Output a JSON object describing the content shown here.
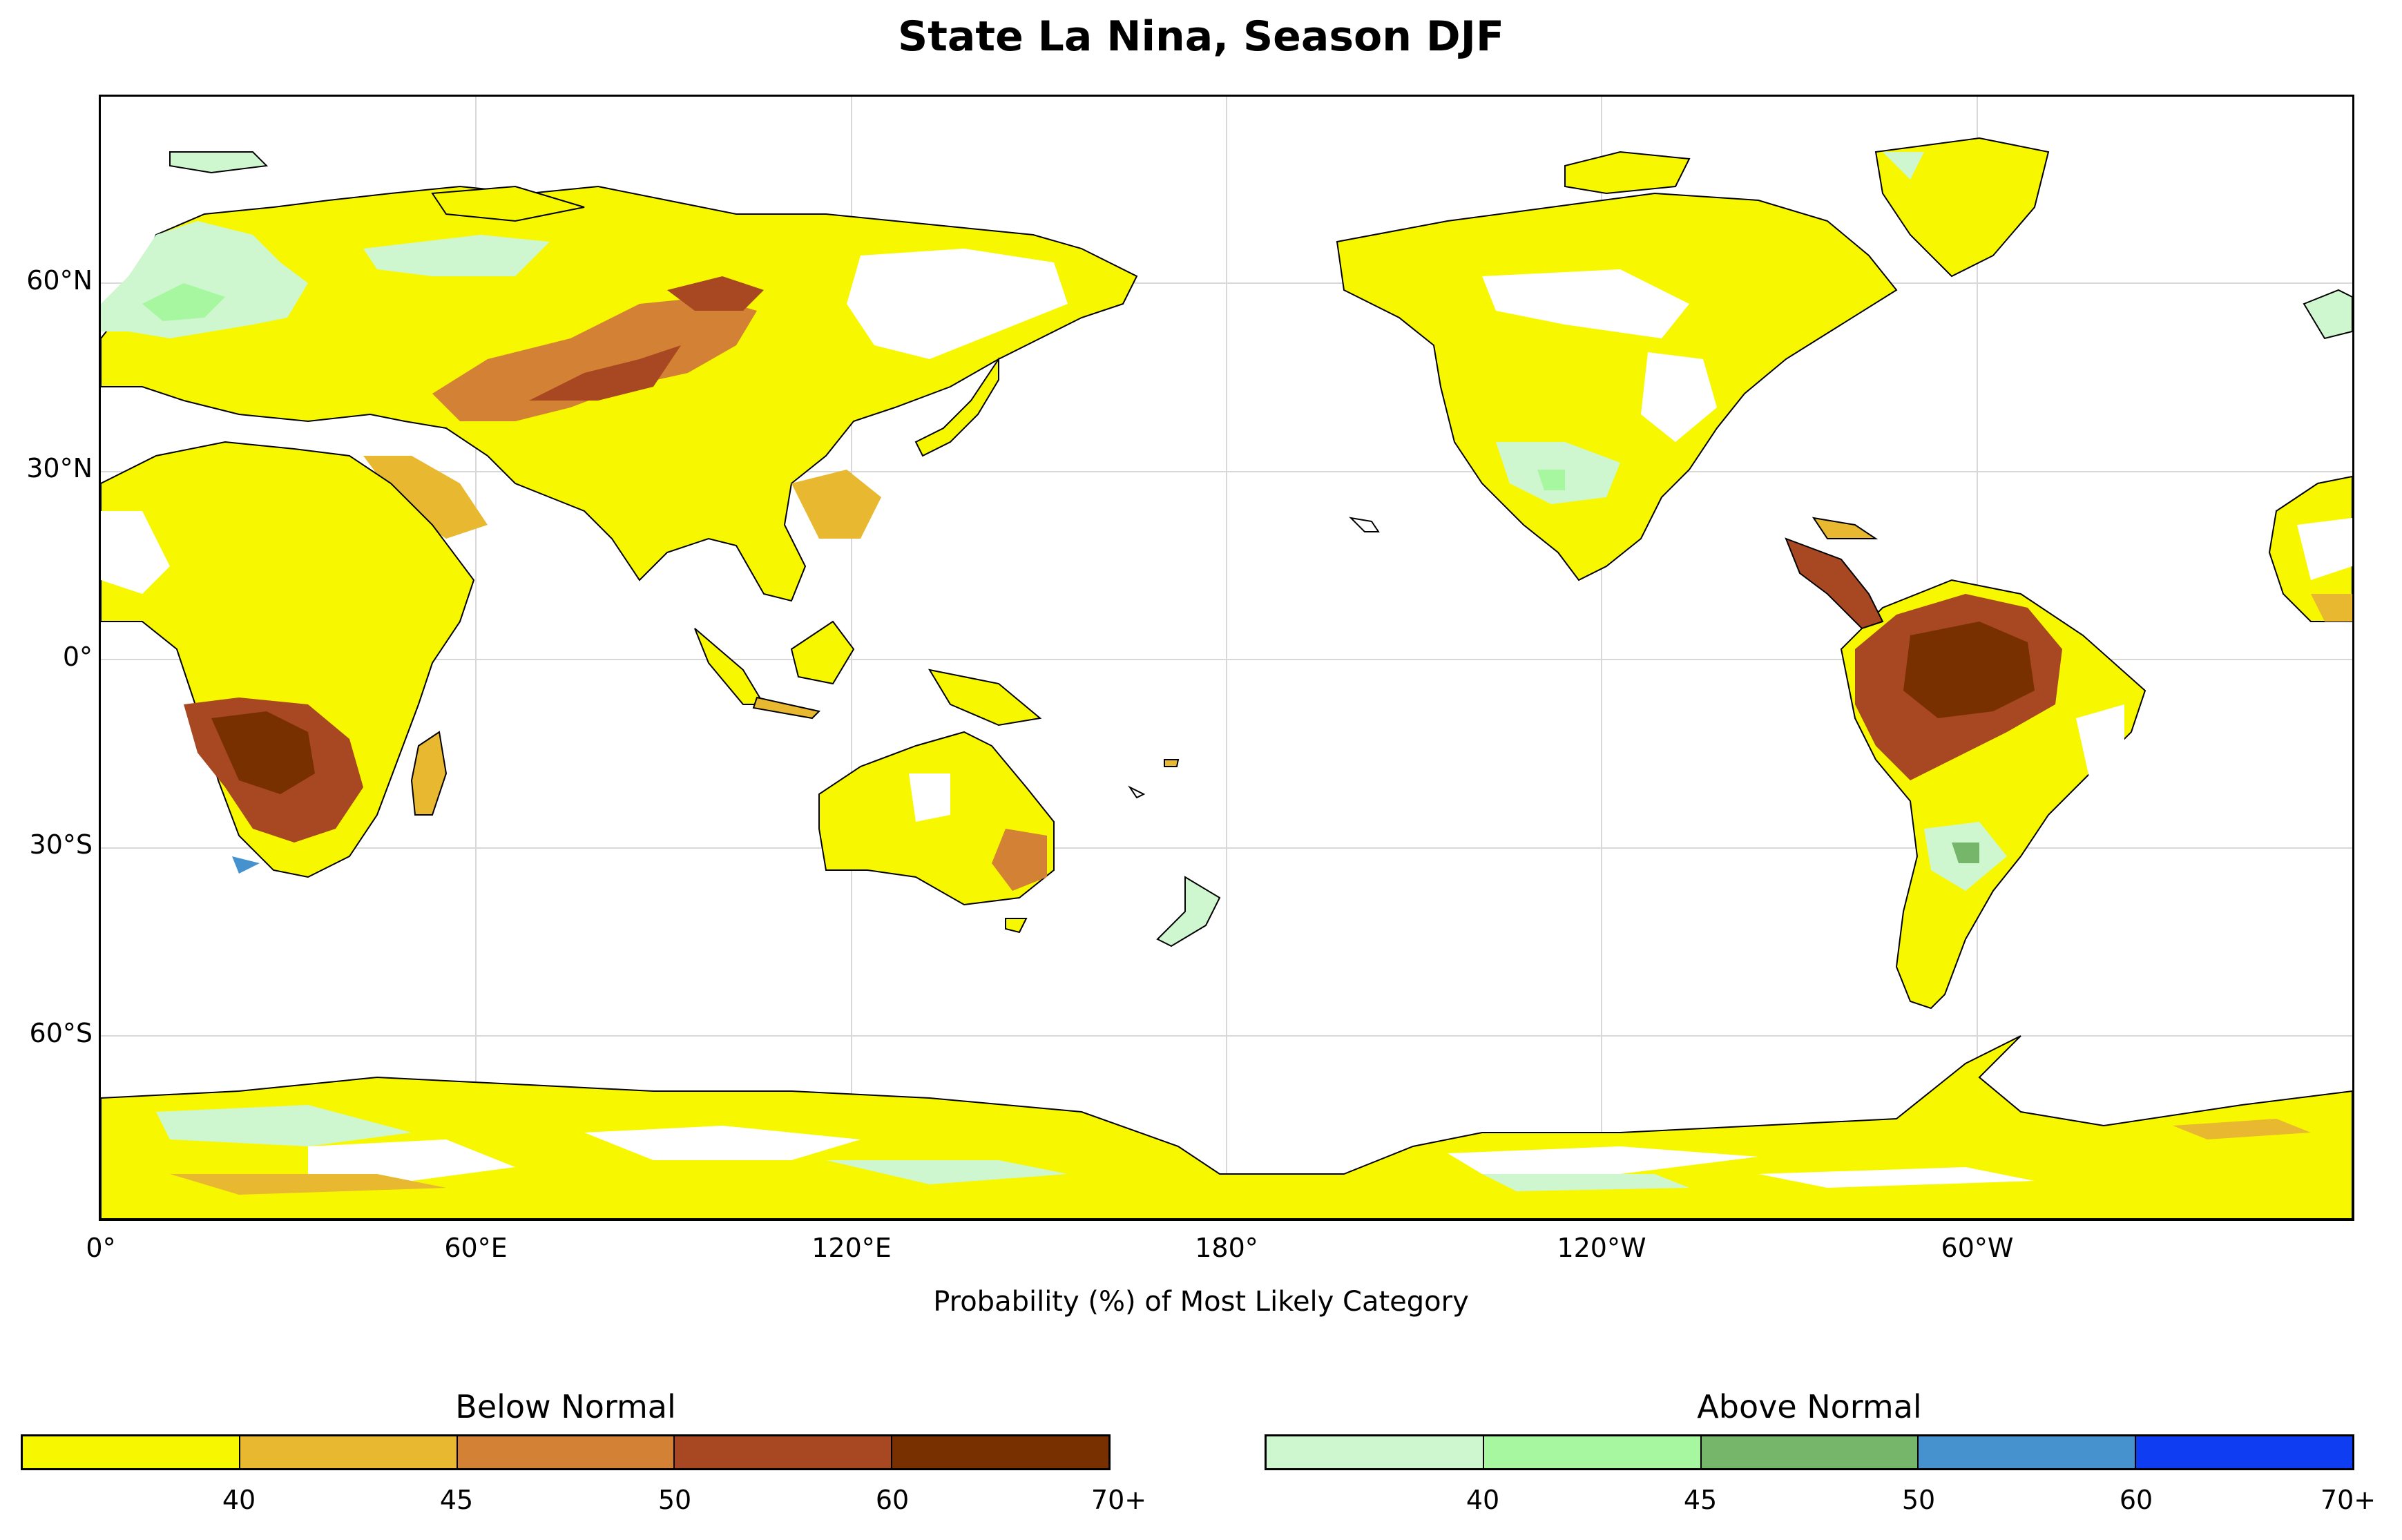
{
  "title": "State La Nina, Season DJF",
  "xlabel": "Probability (%) of Most Likely Category",
  "lat_labels": [
    "60°N",
    "30°N",
    "0°",
    "30°S",
    "60°S"
  ],
  "lon_labels": [
    "0°",
    "60°E",
    "120°E",
    "180°",
    "120°W",
    "60°W"
  ],
  "colorbars": [
    {
      "title": "Below Normal",
      "ticks": [
        "40",
        "45",
        "50",
        "60",
        "70+"
      ],
      "colors": [
        "#f7f700",
        "#e8b830",
        "#d38134",
        "#a84822",
        "#793000"
      ]
    },
    {
      "title": "Above Normal",
      "ticks": [
        "40",
        "45",
        "50",
        "60",
        "70+"
      ],
      "colors": [
        "#cff7cf",
        "#a6f7a0",
        "#75b66b",
        "#4592cf",
        "#0e3df2"
      ]
    }
  ],
  "map": {
    "projection": "plate-carree",
    "central_longitude": 180,
    "grid": true,
    "coastlines": true
  }
}
